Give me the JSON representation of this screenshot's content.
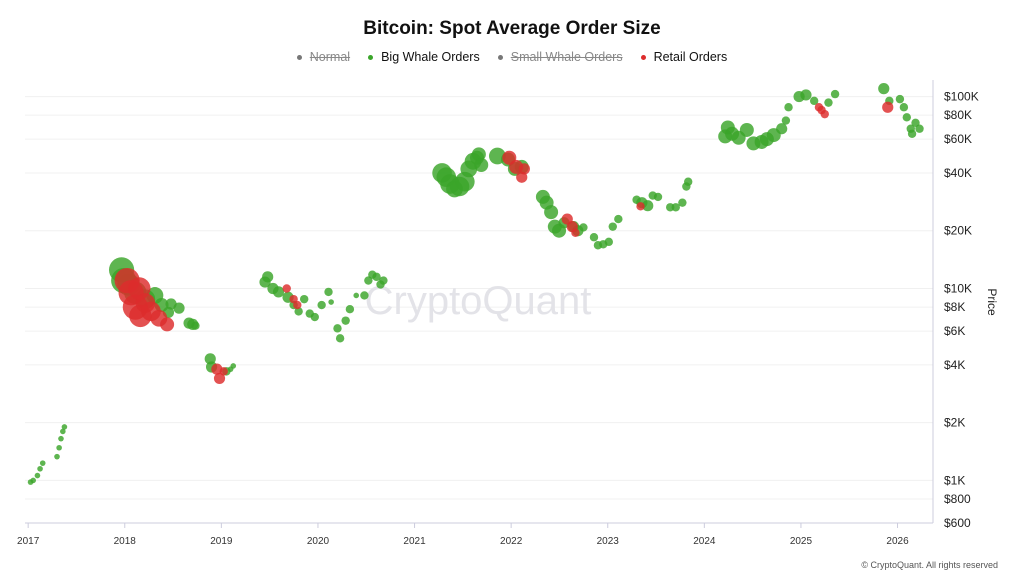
{
  "chart_data": {
    "type": "scatter",
    "title": "Bitcoin: Spot Average Order Size",
    "ylabel": "Price",
    "xlabel": "",
    "y_scale": "log",
    "ylim": [
      600,
      122000
    ],
    "xlim": [
      "2016-12-20",
      "2026-05-15"
    ],
    "grid": true,
    "legend_placement": "top-center",
    "x_ticks": [
      "2017",
      "2018",
      "2019",
      "2020",
      "2021",
      "2022",
      "2023",
      "2024",
      "2025",
      "2026"
    ],
    "y_ticks": [
      {
        "value": 100000,
        "label": "$100K"
      },
      {
        "value": 80000,
        "label": "$80K"
      },
      {
        "value": 60000,
        "label": "$60K"
      },
      {
        "value": 40000,
        "label": "$40K"
      },
      {
        "value": 20000,
        "label": "$20K"
      },
      {
        "value": 10000,
        "label": "$10K"
      },
      {
        "value": 8000,
        "label": "$8K"
      },
      {
        "value": 6000,
        "label": "$6K"
      },
      {
        "value": 4000,
        "label": "$4K"
      },
      {
        "value": 2000,
        "label": "$2K"
      },
      {
        "value": 1000,
        "label": "$1K"
      },
      {
        "value": 800,
        "label": "$800"
      },
      {
        "value": 600,
        "label": "$600"
      }
    ],
    "legend": [
      {
        "name": "Normal",
        "color": "#777777",
        "visible": false
      },
      {
        "name": "Big Whale Orders",
        "color": "#3aa52a",
        "visible": true
      },
      {
        "name": "Small Whale Orders",
        "color": "#777777",
        "visible": false
      },
      {
        "name": "Retail Orders",
        "color": "#dd2c2c",
        "visible": true
      }
    ],
    "point_format": [
      "date",
      "price",
      "relative_bubble_size"
    ],
    "series": [
      {
        "name": "Big Whale Orders",
        "color": "#3aa52a",
        "points": [
          [
            "2017-01-10",
            980,
            2
          ],
          [
            "2017-01-20",
            1000,
            2
          ],
          [
            "2017-02-05",
            1060,
            2
          ],
          [
            "2017-02-15",
            1150,
            2
          ],
          [
            "2017-02-25",
            1230,
            2
          ],
          [
            "2017-04-20",
            1330,
            2
          ],
          [
            "2017-04-28",
            1480,
            2
          ],
          [
            "2017-05-05",
            1650,
            2
          ],
          [
            "2017-05-12",
            1800,
            2
          ],
          [
            "2017-05-18",
            1900,
            2
          ],
          [
            "2017-12-20",
            12500,
            9
          ],
          [
            "2017-12-28",
            11000,
            9
          ],
          [
            "2018-01-15",
            10500,
            8
          ],
          [
            "2018-02-10",
            9500,
            8
          ],
          [
            "2018-03-20",
            8800,
            7
          ],
          [
            "2018-04-25",
            9200,
            6
          ],
          [
            "2018-05-20",
            8200,
            5
          ],
          [
            "2018-06-15",
            7500,
            4
          ],
          [
            "2018-06-25",
            8300,
            4
          ],
          [
            "2018-07-25",
            7900,
            4
          ],
          [
            "2018-09-01",
            6600,
            4
          ],
          [
            "2018-09-15",
            6500,
            4
          ],
          [
            "2018-09-25",
            6400,
            3
          ],
          [
            "2018-11-20",
            4300,
            4
          ],
          [
            "2018-11-25",
            3900,
            4
          ],
          [
            "2019-01-20",
            3700,
            3
          ],
          [
            "2019-02-05",
            3800,
            2
          ],
          [
            "2019-02-15",
            3950,
            2
          ],
          [
            "2019-06-15",
            10800,
            4
          ],
          [
            "2019-06-25",
            11500,
            4
          ],
          [
            "2019-07-15",
            10000,
            4
          ],
          [
            "2019-08-05",
            9600,
            4
          ],
          [
            "2019-09-10",
            9000,
            4
          ],
          [
            "2019-10-01",
            8200,
            3
          ],
          [
            "2019-10-20",
            7600,
            3
          ],
          [
            "2019-11-10",
            8800,
            3
          ],
          [
            "2019-12-01",
            7400,
            3
          ],
          [
            "2019-12-20",
            7100,
            3
          ],
          [
            "2020-01-15",
            8200,
            3
          ],
          [
            "2020-02-10",
            9600,
            3
          ],
          [
            "2020-02-20",
            8500,
            2
          ],
          [
            "2020-03-15",
            6200,
            3
          ],
          [
            "2020-03-25",
            5500,
            3
          ],
          [
            "2020-04-15",
            6800,
            3
          ],
          [
            "2020-05-01",
            7800,
            3
          ],
          [
            "2020-05-25",
            9200,
            2
          ],
          [
            "2020-06-25",
            9200,
            3
          ],
          [
            "2020-07-10",
            11000,
            3
          ],
          [
            "2020-07-25",
            11800,
            3
          ],
          [
            "2020-08-10",
            11500,
            3
          ],
          [
            "2020-08-25",
            10500,
            3
          ],
          [
            "2020-09-05",
            11000,
            3
          ],
          [
            "2021-04-15",
            40000,
            7
          ],
          [
            "2021-05-01",
            38000,
            7
          ],
          [
            "2021-05-15",
            35000,
            7
          ],
          [
            "2021-06-01",
            33000,
            6
          ],
          [
            "2021-06-20",
            34000,
            7
          ],
          [
            "2021-07-10",
            36000,
            7
          ],
          [
            "2021-07-25",
            42000,
            6
          ],
          [
            "2021-08-10",
            46000,
            6
          ],
          [
            "2021-08-25",
            48000,
            5
          ],
          [
            "2021-09-01",
            50000,
            5
          ],
          [
            "2021-09-10",
            44000,
            5
          ],
          [
            "2021-11-10",
            49000,
            6
          ],
          [
            "2021-12-20",
            47000,
            5
          ],
          [
            "2022-01-15",
            42000,
            5
          ],
          [
            "2022-02-10",
            43000,
            5
          ],
          [
            "2022-05-01",
            30000,
            5
          ],
          [
            "2022-05-15",
            28000,
            5
          ],
          [
            "2022-06-01",
            25000,
            5
          ],
          [
            "2022-06-15",
            21000,
            5
          ],
          [
            "2022-07-01",
            20000,
            5
          ],
          [
            "2022-07-20",
            22000,
            4
          ],
          [
            "2022-08-25",
            21000,
            4
          ],
          [
            "2022-09-10",
            20000,
            4
          ],
          [
            "2022-10-01",
            20800,
            3
          ],
          [
            "2022-11-10",
            18500,
            3
          ],
          [
            "2022-11-25",
            16800,
            3
          ],
          [
            "2022-12-15",
            17000,
            3
          ],
          [
            "2023-01-05",
            17500,
            3
          ],
          [
            "2023-01-20",
            21000,
            3
          ],
          [
            "2023-02-10",
            23000,
            3
          ],
          [
            "2023-04-20",
            29000,
            3
          ],
          [
            "2023-05-10",
            28000,
            4
          ],
          [
            "2023-06-01",
            27000,
            4
          ],
          [
            "2023-06-20",
            30500,
            3
          ],
          [
            "2023-07-10",
            30000,
            3
          ],
          [
            "2023-08-25",
            26500,
            3
          ],
          [
            "2023-09-15",
            26500,
            3
          ],
          [
            "2023-10-10",
            28000,
            3
          ],
          [
            "2023-10-25",
            34000,
            3
          ],
          [
            "2023-11-01",
            36000,
            3
          ],
          [
            "2024-03-20",
            62000,
            5
          ],
          [
            "2024-03-30",
            69000,
            5
          ],
          [
            "2024-04-15",
            64000,
            5
          ],
          [
            "2024-05-10",
            61000,
            5
          ],
          [
            "2024-06-10",
            67000,
            5
          ],
          [
            "2024-07-05",
            57000,
            5
          ],
          [
            "2024-08-05",
            58000,
            5
          ],
          [
            "2024-08-25",
            60000,
            5
          ],
          [
            "2024-09-20",
            63000,
            5
          ],
          [
            "2024-10-20",
            68000,
            4
          ],
          [
            "2024-11-05",
            75000,
            3
          ],
          [
            "2024-11-15",
            88000,
            3
          ],
          [
            "2024-12-25",
            100000,
            4
          ],
          [
            "2025-01-20",
            102000,
            4
          ],
          [
            "2025-02-20",
            95000,
            3
          ],
          [
            "2025-04-15",
            93000,
            3
          ],
          [
            "2025-05-10",
            103000,
            3
          ],
          [
            "2025-11-10",
            110000,
            4
          ],
          [
            "2025-12-01",
            95000,
            3
          ],
          [
            "2026-01-10",
            97000,
            3
          ],
          [
            "2026-01-25",
            88000,
            3
          ],
          [
            "2026-02-05",
            78000,
            3
          ],
          [
            "2026-02-20",
            68000,
            3
          ],
          [
            "2026-02-25",
            64000,
            3
          ],
          [
            "2026-03-10",
            73000,
            3
          ],
          [
            "2026-03-25",
            68000,
            3
          ]
        ]
      },
      {
        "name": "Retail Orders",
        "color": "#dd2c2c",
        "points": [
          [
            "2018-01-10",
            11000,
            9
          ],
          [
            "2018-01-25",
            9500,
            9
          ],
          [
            "2018-02-10",
            8000,
            9
          ],
          [
            "2018-02-25",
            10000,
            8
          ],
          [
            "2018-03-01",
            7200,
            8
          ],
          [
            "2018-03-20",
            8400,
            7
          ],
          [
            "2018-04-10",
            7600,
            7
          ],
          [
            "2018-05-10",
            7000,
            6
          ],
          [
            "2018-06-10",
            6500,
            5
          ],
          [
            "2018-12-15",
            3800,
            4
          ],
          [
            "2018-12-25",
            3400,
            4
          ],
          [
            "2019-01-10",
            3700,
            3
          ],
          [
            "2019-09-05",
            10000,
            3
          ],
          [
            "2019-10-01",
            8800,
            3
          ],
          [
            "2019-10-15",
            8200,
            3
          ],
          [
            "2021-12-25",
            48000,
            5
          ],
          [
            "2022-01-20",
            43000,
            5
          ],
          [
            "2022-02-10",
            38000,
            4
          ],
          [
            "2022-02-20",
            42000,
            4
          ],
          [
            "2022-08-01",
            23000,
            4
          ],
          [
            "2022-08-20",
            21000,
            4
          ],
          [
            "2022-09-01",
            19500,
            3
          ],
          [
            "2023-05-05",
            26800,
            3
          ],
          [
            "2025-03-10",
            88000,
            3
          ],
          [
            "2025-03-20",
            85000,
            3
          ],
          [
            "2025-04-01",
            81000,
            3
          ],
          [
            "2025-11-25",
            88000,
            4
          ]
        ]
      }
    ]
  },
  "watermark": "CryptoQuant",
  "footer": "© CryptoQuant. All rights reserved"
}
